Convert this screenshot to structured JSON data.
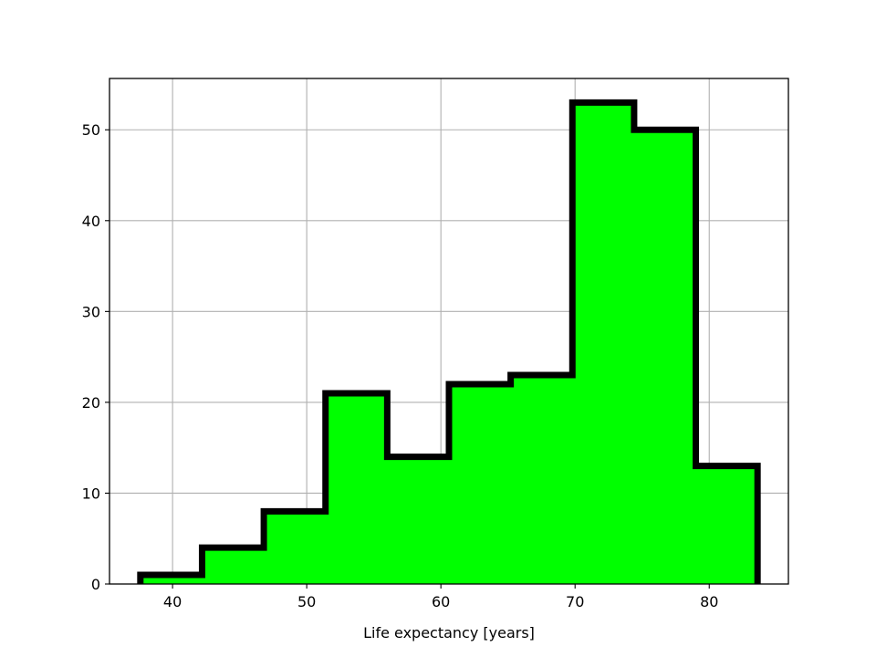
{
  "chart_data": {
    "type": "bar",
    "histogram": true,
    "bin_edges": [
      37.6,
      42.2,
      46.8,
      51.4,
      56.0,
      60.6,
      65.2,
      69.8,
      74.4,
      79.0,
      83.6
    ],
    "values": [
      1,
      4,
      8,
      21,
      14,
      22,
      23,
      53,
      50,
      13
    ],
    "xlabel": "Life expectancy [years]",
    "ylabel": "",
    "xlim": [
      35.3,
      85.9
    ],
    "ylim": [
      0,
      55.65
    ],
    "x_ticks": [
      40,
      50,
      60,
      70,
      80
    ],
    "y_ticks": [
      0,
      10,
      20,
      30,
      40,
      50
    ],
    "grid": true,
    "fill_color": "#00ff00",
    "edge_color": "#000000",
    "histtype": "step-filled"
  }
}
